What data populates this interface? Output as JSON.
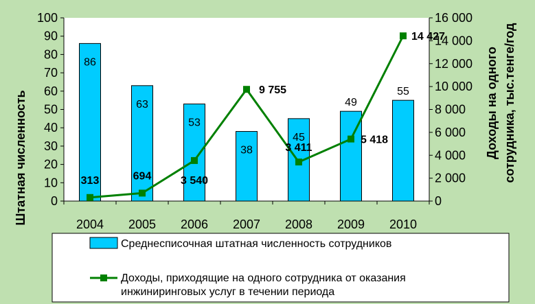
{
  "chart_data": {
    "type": "bar",
    "categories": [
      "2004",
      "2005",
      "2006",
      "2007",
      "2008",
      "2009",
      "2010"
    ],
    "series": [
      {
        "name": "Среднесписочная штатная численность сотрудников",
        "type": "bar",
        "axis": "left",
        "values": [
          86,
          63,
          53,
          38,
          45,
          49,
          55
        ],
        "value_labels": [
          "86",
          "63",
          "53",
          "38",
          "45",
          "49",
          "55"
        ],
        "color": "#00ccff"
      },
      {
        "name": "Доходы, приходящие на одного сотрудника от оказания инжиниринговых услуг в течении периода",
        "legend_lines": [
          "Доходы, приходящие на одного сотрудника от оказания",
          "инжиниринговых услуг в течении периода"
        ],
        "type": "line",
        "axis": "right",
        "values": [
          313,
          694,
          3540,
          9755,
          3411,
          5418,
          14427
        ],
        "value_labels": [
          "313",
          "694",
          "3 540",
          "9 755",
          "3 411",
          "5 418",
          "14 427"
        ],
        "color": "#008000"
      }
    ],
    "left_axis": {
      "label": "Штатная численность",
      "ylim": [
        0,
        100
      ],
      "ticks": [
        "0",
        "10",
        "20",
        "30",
        "40",
        "50",
        "60",
        "70",
        "80",
        "90",
        "100"
      ]
    },
    "right_axis": {
      "label_lines": [
        "Доходы на одного",
        "сотрудника, тыс.тенге/год"
      ],
      "ylim": [
        0,
        16000
      ],
      "ticks": [
        "0",
        "2 000",
        "4 000",
        "6 000",
        "8 000",
        "10 000",
        "12 000",
        "14 000",
        "16 000"
      ]
    },
    "legend_position": "bottom",
    "grid": false
  }
}
